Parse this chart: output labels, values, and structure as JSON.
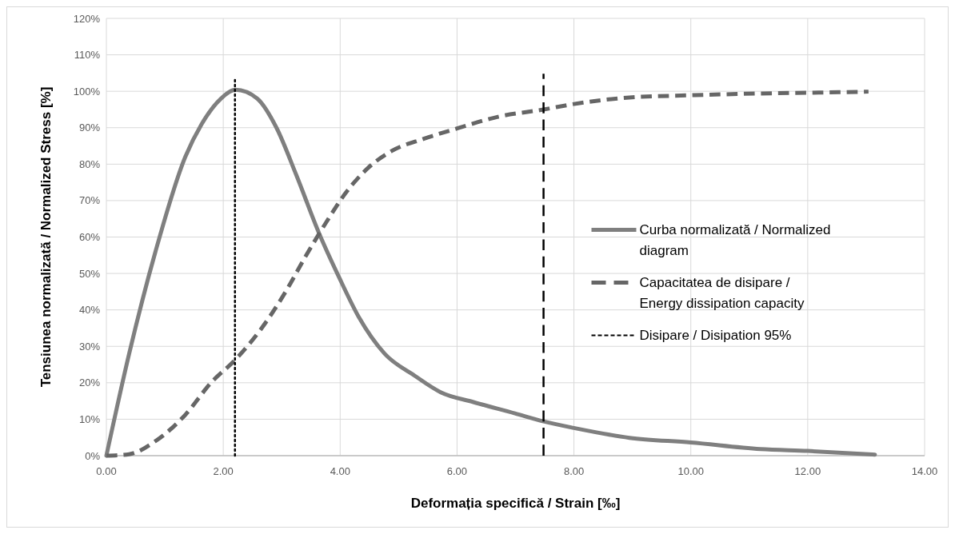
{
  "chart_data": {
    "type": "line",
    "xlabel": "Deformația specifică / Strain  [‰]",
    "ylabel": "Tensiunea normalizată / Normalized Stress  [%]",
    "xlim": [
      0,
      14
    ],
    "ylim": [
      0,
      120
    ],
    "xticks": [
      {
        "value": 0,
        "label": "0.00"
      },
      {
        "value": 2,
        "label": "2.00"
      },
      {
        "value": 4,
        "label": "4.00"
      },
      {
        "value": 6,
        "label": "6.00"
      },
      {
        "value": 8,
        "label": "8.00"
      },
      {
        "value": 10,
        "label": "10.00"
      },
      {
        "value": 12,
        "label": "12.00"
      },
      {
        "value": 14,
        "label": "14.00"
      }
    ],
    "yticks": [
      {
        "value": 0,
        "label": "0%"
      },
      {
        "value": 10,
        "label": "10%"
      },
      {
        "value": 20,
        "label": "20%"
      },
      {
        "value": 30,
        "label": "30%"
      },
      {
        "value": 40,
        "label": "40%"
      },
      {
        "value": 50,
        "label": "50%"
      },
      {
        "value": 60,
        "label": "60%"
      },
      {
        "value": 70,
        "label": "70%"
      },
      {
        "value": 80,
        "label": "80%"
      },
      {
        "value": 90,
        "label": "90%"
      },
      {
        "value": 100,
        "label": "100%"
      },
      {
        "value": 110,
        "label": "110%"
      },
      {
        "value": 120,
        "label": "120%"
      }
    ],
    "grid": true,
    "legend": "right",
    "series": [
      {
        "name": "Curba normalizată / Normalized diagram",
        "color": "#7f7f7f",
        "line_style": "solid",
        "x": [
          0,
          0.39,
          0.84,
          1.35,
          1.63,
          1.96,
          2.21,
          2.58,
          2.91,
          3.25,
          3.64,
          3.98,
          4.32,
          4.76,
          5.27,
          5.72,
          6.28,
          6.99,
          7.48,
          8.0,
          8.95,
          10.0,
          11.19,
          12.0,
          13.15
        ],
        "values": [
          0,
          28,
          56,
          82,
          91,
          98,
          100.4,
          98,
          90,
          77,
          61,
          49,
          38,
          28,
          22,
          17.4,
          14.7,
          11.6,
          9.4,
          7.6,
          4.9,
          3.6,
          1.8,
          1.3,
          0.3
        ]
      },
      {
        "name": "Capacitatea de disipare / Energy dissipation capacity",
        "color": "#666666",
        "line_style": "dashed",
        "x": [
          0,
          0.39,
          0.84,
          1.35,
          1.79,
          2.21,
          2.63,
          3.03,
          3.42,
          3.76,
          4.09,
          4.48,
          4.88,
          5.44,
          6.0,
          6.7,
          7.48,
          8.0,
          8.95,
          10.0,
          11.19,
          12.0,
          13.04
        ],
        "values": [
          0,
          0.4,
          4,
          11.2,
          20,
          26.4,
          34.4,
          44,
          55,
          64,
          72,
          79,
          83.6,
          87,
          89.8,
          93,
          95,
          96.5,
          98.3,
          98.9,
          99.4,
          99.6,
          99.9
        ]
      },
      {
        "name": "Disipare / Disipation 95%",
        "color": "#000000",
        "line_style": "dashed",
        "x": [
          7.48,
          7.48
        ],
        "values": [
          0,
          104.8
        ]
      },
      {
        "color": "#000000",
        "line_style": "dotted",
        "x": [
          2.2,
          2.2
        ],
        "values": [
          0,
          103.7
        ]
      }
    ]
  }
}
